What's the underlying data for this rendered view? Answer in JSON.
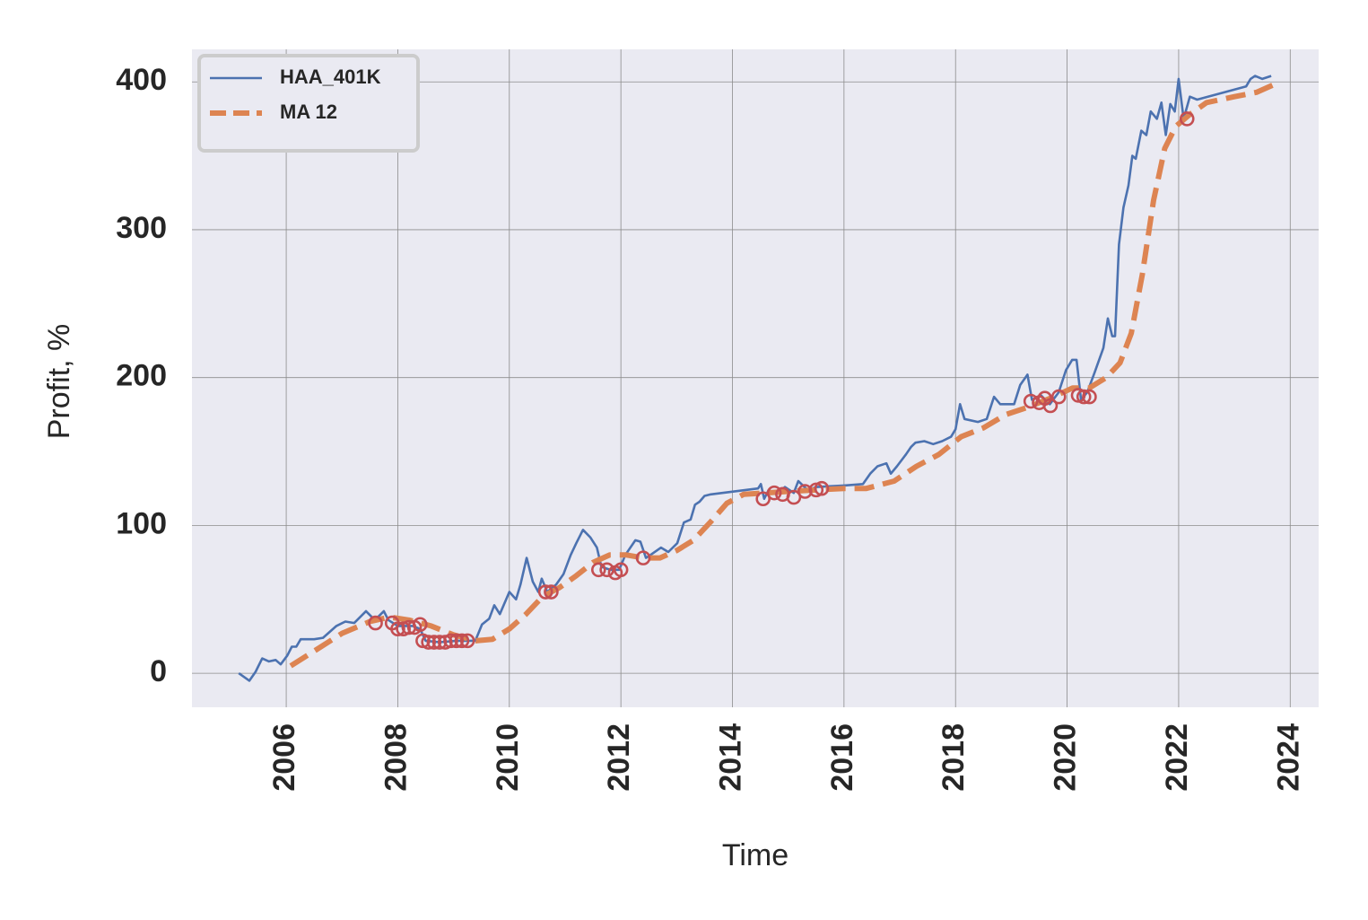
{
  "chart_data": {
    "type": "line",
    "x_label": "Time",
    "y_label": "Profit, %",
    "xlim": [
      2004.31,
      2024.51
    ],
    "ylim": [
      -23,
      422
    ],
    "xticks": [
      2006,
      2008,
      2010,
      2012,
      2014,
      2016,
      2018,
      2020,
      2022,
      2024
    ],
    "yticks": [
      0,
      100,
      200,
      300,
      400
    ],
    "grid": true,
    "legend": "upper left",
    "series": [
      {
        "name": "HAA_401K",
        "color": "#4c72b0",
        "linestyle": "solid",
        "x": [
          2005.15,
          2005.34,
          2005.45,
          2005.57,
          2005.69,
          2005.81,
          2005.9,
          2006.02,
          2006.1,
          2006.18,
          2006.26,
          2006.5,
          2006.66,
          2006.9,
          2007.06,
          2007.22,
          2007.43,
          2007.59,
          2007.75,
          2007.83,
          2008.0,
          2008.27,
          2008.4,
          2008.5,
          2008.75,
          2009.07,
          2009.39,
          2009.51,
          2009.64,
          2009.73,
          2009.83,
          2010.0,
          2010.12,
          2010.2,
          2010.31,
          2010.42,
          2010.52,
          2010.58,
          2010.68,
          2010.84,
          2010.97,
          2011.1,
          2011.2,
          2011.32,
          2011.45,
          2011.57,
          2011.65,
          2011.81,
          2011.97,
          2012.08,
          2012.26,
          2012.35,
          2012.45,
          2012.53,
          2012.72,
          2012.85,
          2013.01,
          2013.13,
          2013.25,
          2013.33,
          2013.41,
          2013.5,
          2013.61,
          2014.46,
          2014.51,
          2014.57,
          2014.65,
          2014.78,
          2014.94,
          2015.1,
          2015.18,
          2015.35,
          2015.51,
          2016.0,
          2016.34,
          2016.47,
          2016.6,
          2016.76,
          2016.84,
          2016.95,
          2017.11,
          2017.2,
          2017.28,
          2017.44,
          2017.6,
          2017.76,
          2017.92,
          2018.0,
          2018.08,
          2018.16,
          2018.4,
          2018.56,
          2018.69,
          2018.8,
          2019.05,
          2019.16,
          2019.29,
          2019.37,
          2019.53,
          2019.69,
          2019.85,
          2019.98,
          2020.09,
          2020.17,
          2020.25,
          2020.36,
          2020.49,
          2020.65,
          2020.73,
          2020.81,
          2020.86,
          2020.93,
          2021.01,
          2021.1,
          2021.17,
          2021.23,
          2021.33,
          2021.42,
          2021.5,
          2021.61,
          2021.69,
          2021.77,
          2021.85,
          2021.93,
          2022.0,
          2022.09,
          2022.2,
          2022.33,
          2023.21,
          2023.29,
          2023.37,
          2023.5,
          2023.66
        ],
        "values": [
          0,
          -5,
          1,
          10,
          8,
          9,
          6,
          12,
          18,
          18,
          23,
          23,
          24,
          32,
          35,
          34,
          42,
          36,
          42,
          36,
          32,
          32,
          30,
          22,
          21,
          22,
          22,
          33,
          37,
          46,
          40,
          55,
          50,
          60,
          78,
          62,
          55,
          64,
          55,
          60,
          67,
          80,
          88,
          97,
          92,
          85,
          72,
          70,
          70,
          80,
          90,
          89,
          78,
          80,
          85,
          82,
          88,
          102,
          104,
          114,
          116,
          120,
          121,
          125,
          128,
          118,
          124,
          121,
          126,
          122,
          130,
          124,
          126,
          127,
          128,
          135,
          140,
          142,
          135,
          140,
          148,
          153,
          156,
          157,
          155,
          157,
          160,
          165,
          182,
          172,
          170,
          172,
          187,
          182,
          182,
          195,
          202,
          185,
          188,
          182,
          190,
          205,
          212,
          212,
          185,
          190,
          203,
          220,
          240,
          228,
          228,
          290,
          315,
          330,
          350,
          348,
          367,
          364,
          380,
          375,
          386,
          364,
          385,
          380,
          402,
          375,
          390,
          388,
          397,
          402,
          404,
          402,
          404
        ]
      },
      {
        "name": "MA 12",
        "color": "#dd8452",
        "linestyle": "dashed",
        "x": [
          2006.08,
          2006.5,
          2007.0,
          2007.5,
          2007.85,
          2008.2,
          2008.6,
          2009.0,
          2009.4,
          2009.7,
          2010.0,
          2010.3,
          2010.6,
          2010.9,
          2011.2,
          2011.5,
          2011.8,
          2012.1,
          2012.4,
          2012.7,
          2013.0,
          2013.3,
          2013.6,
          2013.9,
          2014.2,
          2014.6,
          2015.0,
          2015.5,
          2016.0,
          2016.4,
          2016.9,
          2017.3,
          2017.7,
          2018.1,
          2018.5,
          2018.9,
          2019.3,
          2019.7,
          2020.1,
          2020.4,
          2020.7,
          2020.95,
          2021.15,
          2021.35,
          2021.55,
          2021.75,
          2021.95,
          2022.2,
          2022.5,
          2023.0,
          2023.4,
          2023.7
        ],
        "values": [
          5,
          15,
          27,
          35,
          38,
          36,
          32,
          26,
          22,
          23,
          30,
          40,
          52,
          58,
          66,
          75,
          80,
          80,
          78,
          78,
          83,
          90,
          102,
          115,
          121,
          122,
          123,
          124,
          125,
          125,
          130,
          140,
          148,
          160,
          166,
          175,
          180,
          186,
          193,
          193,
          200,
          210,
          230,
          270,
          320,
          355,
          370,
          378,
          386,
          390,
          393,
          398
        ]
      },
      {
        "color": "#c44e52",
        "linestyle": "none",
        "marker": "o",
        "x": [
          2007.6,
          2007.9,
          2008.0,
          2008.1,
          2008.2,
          2008.3,
          2008.4,
          2008.45,
          2008.55,
          2008.65,
          2008.75,
          2008.85,
          2008.95,
          2009.05,
          2009.15,
          2009.25,
          2010.65,
          2010.75,
          2011.6,
          2011.75,
          2011.9,
          2012.0,
          2012.4,
          2014.55,
          2014.75,
          2014.9,
          2015.1,
          2015.3,
          2015.5,
          2015.6,
          2019.35,
          2019.5,
          2019.6,
          2019.7,
          2019.85,
          2020.2,
          2020.3,
          2020.4,
          2022.15
        ],
        "values": [
          34,
          34,
          30,
          30,
          31,
          31,
          33,
          22,
          21,
          21,
          21,
          21,
          22,
          22,
          22,
          22,
          55,
          55,
          70,
          70,
          68,
          70,
          78,
          118,
          122,
          121,
          119,
          123,
          124,
          125,
          184,
          183,
          186,
          181,
          187,
          188,
          187,
          187,
          375
        ]
      }
    ]
  }
}
